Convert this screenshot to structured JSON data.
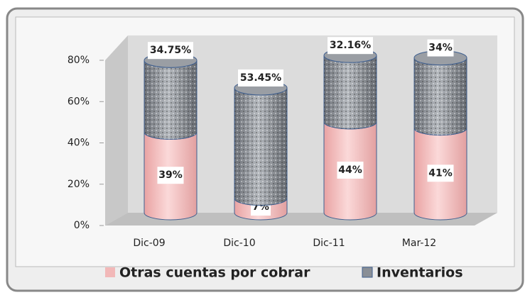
{
  "chart_data": {
    "type": "bar",
    "stacked": true,
    "categories": [
      "Dic-09",
      "Dic-10",
      "Dic-11",
      "Mar-12"
    ],
    "series": [
      {
        "name": "Otras cuentas por cobrar",
        "color": "#f2b8b8",
        "values": [
          39,
          7,
          44,
          41
        ],
        "value_labels": [
          "39%",
          "7%",
          "44%",
          "41%"
        ]
      },
      {
        "name": "Inventarios",
        "color": "#8a8f96",
        "values": [
          34.75,
          53.45,
          32.16,
          34
        ],
        "value_labels": [
          "34.75%",
          "53.45%",
          "32.16%",
          "34%"
        ]
      }
    ],
    "ylim": [
      0,
      90
    ],
    "yticks": [
      {
        "value": 0,
        "label": "0%"
      },
      {
        "value": 20,
        "label": "20%"
      },
      {
        "value": 40,
        "label": "40%"
      },
      {
        "value": 60,
        "label": "60%"
      },
      {
        "value": 80,
        "label": "80%"
      }
    ],
    "legend": "bottom"
  }
}
